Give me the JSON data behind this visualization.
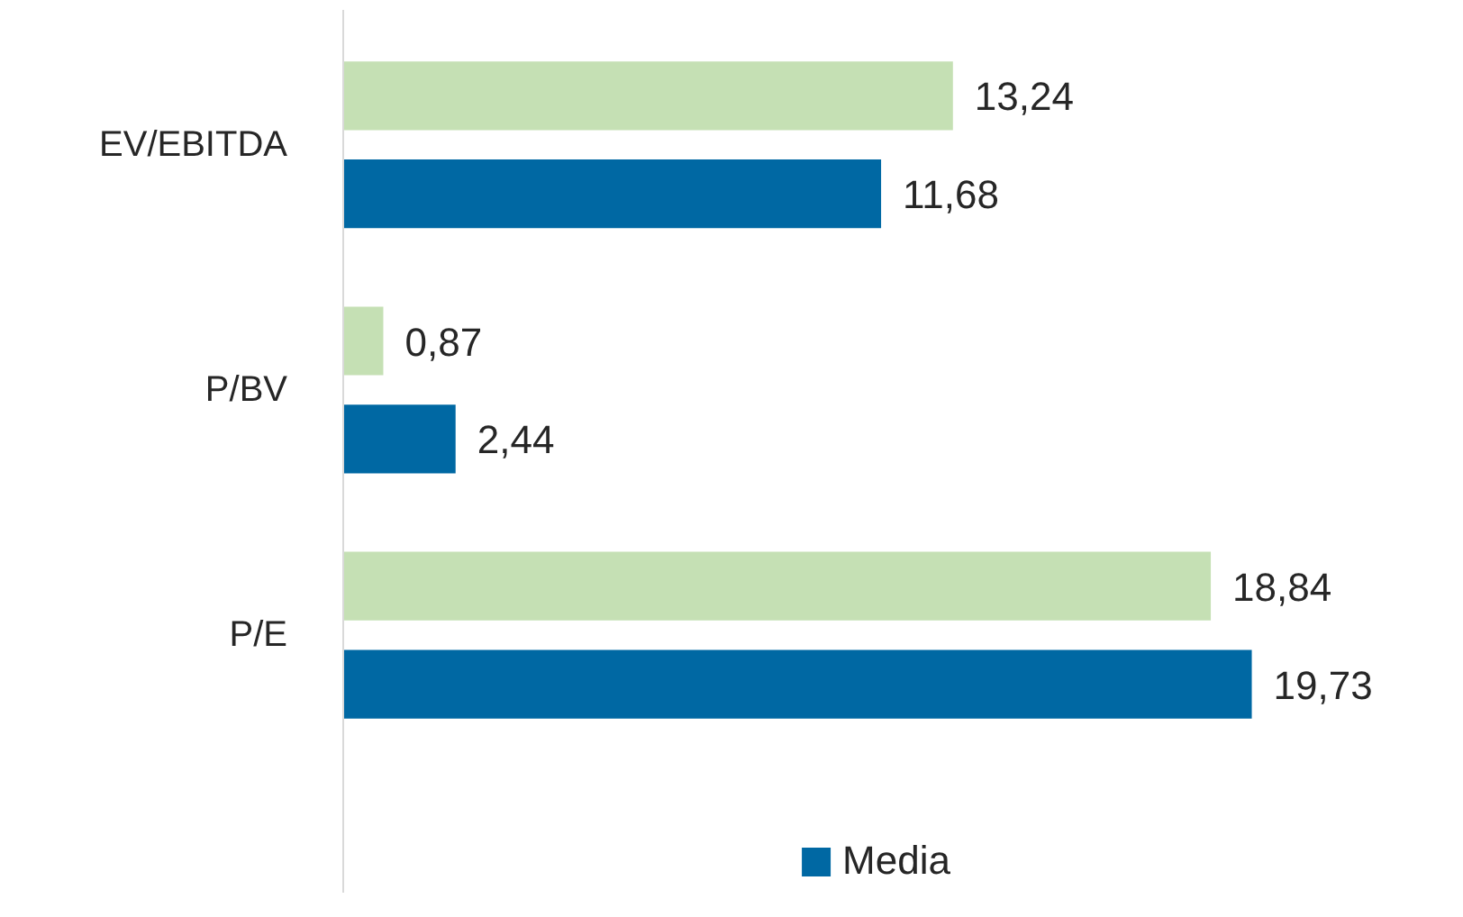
{
  "chart_data": {
    "type": "bar",
    "orientation": "horizontal",
    "categories": [
      "EV/EBITDA",
      "P/BV",
      "P/E"
    ],
    "series": [
      {
        "color": "#c5e0b4",
        "values": [
          13.24,
          0.87,
          18.84
        ],
        "value_labels": [
          "13,24",
          "0,87",
          "18,84"
        ]
      },
      {
        "name": "Media",
        "color": "#0068a3",
        "values": [
          11.68,
          2.44,
          19.73
        ],
        "value_labels": [
          "11,68",
          "2,44",
          "19,73"
        ]
      }
    ],
    "legend": "bottom",
    "grid": false
  }
}
